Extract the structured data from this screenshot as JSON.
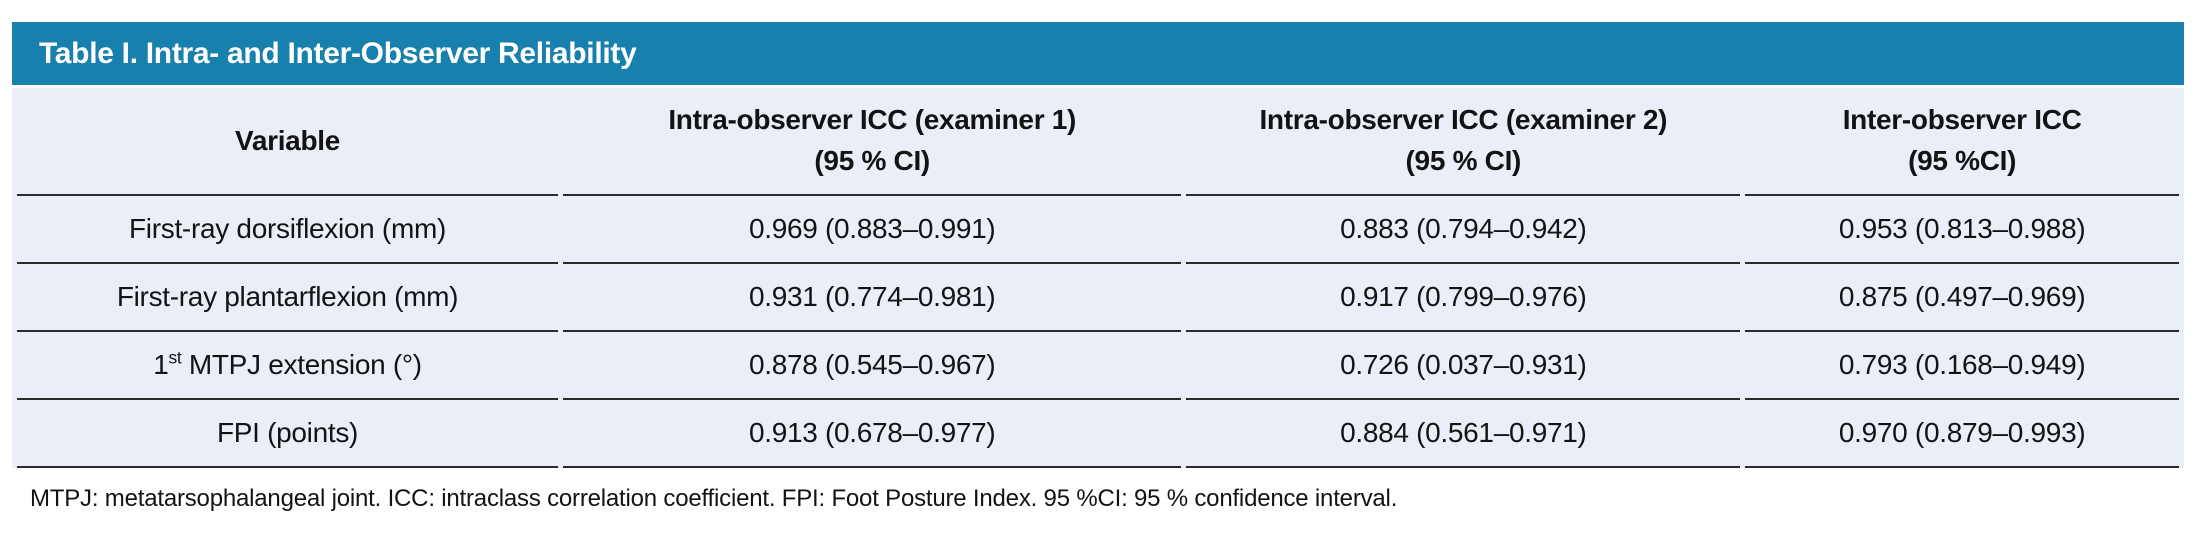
{
  "palette": {
    "accent_teal": "#1780AD",
    "table_body_background": "#EAEEF6",
    "rule_color": "#2B2B2B",
    "title_text_color": "#FFFFFF",
    "body_text_color": "#131313"
  },
  "title_bar": {
    "title": "Table I. Intra- and Inter-Observer Reliability"
  },
  "table": {
    "columns": [
      {
        "id": "variable",
        "line1": "Variable",
        "line2": ""
      },
      {
        "id": "icc_examiner1",
        "line1": "Intra-observer ICC (examiner 1)",
        "line2": "(95 % CI)"
      },
      {
        "id": "icc_examiner2",
        "line1": "Intra-observer ICC (examiner 2)",
        "line2": "(95 % CI)"
      },
      {
        "id": "inter_icc",
        "line1": "Inter-observer ICC",
        "line2": "(95 %CI)"
      }
    ],
    "rows": [
      {
        "variable": {
          "pre": "First-ray dorsiflexion (mm)",
          "sup": "",
          "post": ""
        },
        "icc1": "0.969 (0.883–0.991)",
        "icc2": "0.883 (0.794–0.942)",
        "inter": "0.953 (0.813–0.988)"
      },
      {
        "variable": {
          "pre": "First-ray plantarflexion (mm)",
          "sup": "",
          "post": ""
        },
        "icc1": "0.931 (0.774–0.981)",
        "icc2": "0.917 (0.799–0.976)",
        "inter": "0.875 (0.497–0.969)"
      },
      {
        "variable": {
          "pre": "1",
          "sup": "st",
          "post": " MTPJ extension (°)"
        },
        "icc1": "0.878 (0.545–0.967)",
        "icc2": "0.726 (0.037–0.931)",
        "inter": "0.793 (0.168–0.949)"
      },
      {
        "variable": {
          "pre": "FPI (points)",
          "sup": "",
          "post": ""
        },
        "icc1": "0.913 (0.678–0.977)",
        "icc2": "0.884 (0.561–0.971)",
        "inter": "0.970 (0.879–0.993)"
      }
    ]
  },
  "footnote": "MTPJ: metatarsophalangeal joint. ICC: intraclass correlation coefficient. FPI: Foot Posture Index. 95 %CI: 95 % confidence interval.",
  "chart_data": {
    "type": "table",
    "title": "Table I. Intra- and Inter-Observer Reliability",
    "columns": [
      "Variable",
      "Intra-observer ICC (examiner 1) (95 % CI)",
      "Intra-observer ICC (examiner 2) (95 % CI)",
      "Inter-observer ICC (95 %CI)"
    ],
    "rows": [
      [
        "First-ray dorsiflexion (mm)",
        "0.969 (0.883–0.991)",
        "0.883 (0.794–0.942)",
        "0.953 (0.813–0.988)"
      ],
      [
        "First-ray plantarflexion (mm)",
        "0.931 (0.774–0.981)",
        "0.917 (0.799–0.976)",
        "0.875 (0.497–0.969)"
      ],
      [
        "1st MTPJ extension (°)",
        "0.878 (0.545–0.967)",
        "0.726 (0.037–0.931)",
        "0.793 (0.168–0.949)"
      ],
      [
        "FPI (points)",
        "0.913 (0.678–0.977)",
        "0.884 (0.561–0.971)",
        "0.970 (0.879–0.993)"
      ]
    ]
  }
}
